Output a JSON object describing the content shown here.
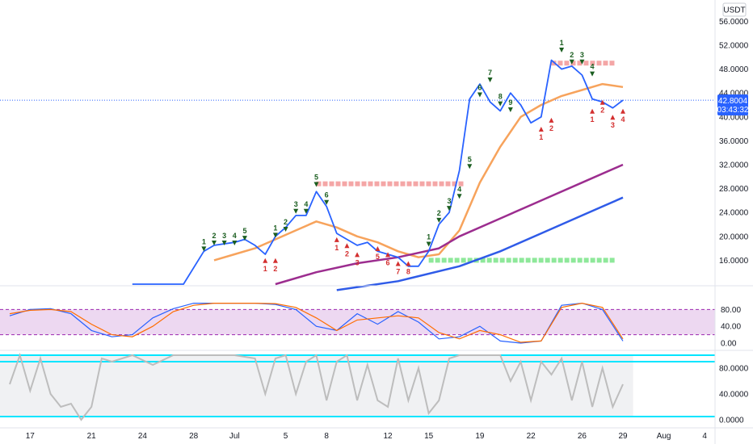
{
  "chart_data": {
    "type": "line",
    "currency_label": "USDT",
    "current_price": "42.8004",
    "countdown": "03:43:32",
    "x_tick_labels": [
      "17",
      "21",
      "24",
      "28",
      "Jul",
      "5",
      "8",
      "12",
      "15",
      "19",
      "22",
      "26",
      "29",
      "Aug",
      "4"
    ],
    "main_y_ticks": [
      "56.0000",
      "52.0000",
      "48.0000",
      "44.0000",
      "40.0000",
      "36.0000",
      "32.0000",
      "28.0000",
      "24.0000",
      "20.0000",
      "16.0000"
    ],
    "stoch_y_ticks": [
      "80.00",
      "40.00",
      "0.00"
    ],
    "rsi_y_ticks": [
      "80.0000",
      "40.0000",
      "0.0000"
    ],
    "price_series": {
      "name": "",
      "color": "#2962ff",
      "points": [
        [
          6,
          12
        ],
        [
          8.5,
          12
        ],
        [
          9.5,
          17.5
        ],
        [
          10,
          18.5
        ],
        [
          11,
          19
        ],
        [
          11.5,
          19.5
        ],
        [
          12,
          18.5
        ],
        [
          12.5,
          17
        ],
        [
          13,
          20
        ],
        [
          13.5,
          21.5
        ],
        [
          14,
          23.5
        ],
        [
          14.5,
          23.5
        ],
        [
          15,
          27.5
        ],
        [
          15.5,
          25
        ],
        [
          16,
          20.5
        ],
        [
          16.5,
          19.5
        ],
        [
          17,
          18.5
        ],
        [
          17.5,
          19
        ],
        [
          18,
          17.5
        ],
        [
          18.5,
          17
        ],
        [
          19,
          16.5
        ],
        [
          19.5,
          15
        ],
        [
          20,
          15
        ],
        [
          20.5,
          17.5
        ],
        [
          21,
          22
        ],
        [
          21.5,
          24
        ],
        [
          22,
          31
        ],
        [
          22.5,
          43
        ],
        [
          23,
          45.5
        ],
        [
          23.5,
          42.5
        ],
        [
          24,
          41
        ],
        [
          24.5,
          44
        ],
        [
          25,
          42
        ],
        [
          25.5,
          39
        ],
        [
          26,
          40
        ],
        [
          26.5,
          49.5
        ],
        [
          27,
          48
        ],
        [
          27.5,
          48.5
        ],
        [
          28,
          47
        ],
        [
          28.5,
          43
        ],
        [
          29,
          42.5
        ],
        [
          29.5,
          41.5
        ],
        [
          30,
          42.8
        ]
      ]
    },
    "ma_series": [
      {
        "name": "",
        "color": "#f7a35c",
        "points": [
          [
            10,
            16
          ],
          [
            11,
            17
          ],
          [
            12,
            18
          ],
          [
            13,
            19.5
          ],
          [
            14,
            21
          ],
          [
            15,
            22.5
          ],
          [
            16,
            21.5
          ],
          [
            17,
            20
          ],
          [
            18,
            19
          ],
          [
            19,
            17.5
          ],
          [
            20,
            16.5
          ],
          [
            21,
            17
          ],
          [
            22,
            21
          ],
          [
            22.5,
            25
          ],
          [
            23,
            29
          ],
          [
            24,
            35
          ],
          [
            25,
            40
          ],
          [
            26,
            42
          ],
          [
            27,
            43.5
          ],
          [
            28,
            44.5
          ],
          [
            29,
            45.5
          ],
          [
            30,
            45
          ]
        ]
      },
      {
        "name": "",
        "color": "#9c2d8f",
        "points": [
          [
            13,
            12
          ],
          [
            15,
            14
          ],
          [
            17,
            15.5
          ],
          [
            19,
            16.5
          ],
          [
            21,
            18
          ],
          [
            22,
            20
          ],
          [
            24,
            23
          ],
          [
            26,
            26
          ],
          [
            28,
            29
          ],
          [
            30,
            32
          ]
        ]
      },
      {
        "name": "",
        "color": "#2f5be8",
        "points": [
          [
            16,
            11
          ],
          [
            19,
            12.5
          ],
          [
            22,
            15
          ],
          [
            24,
            17.5
          ],
          [
            26,
            20.5
          ],
          [
            28,
            23.5
          ],
          [
            30,
            26.5
          ]
        ]
      }
    ],
    "resistance_levels": [
      {
        "from": 15,
        "to": 22,
        "y": 28.8,
        "color": "#f4a6a6"
      },
      {
        "from": 26.5,
        "to": 29.5,
        "y": 49,
        "color": "#f4a6a6"
      }
    ],
    "support_levels": [
      {
        "from": 20.5,
        "to": 29.5,
        "y": 16,
        "color": "#8ee89a"
      }
    ],
    "stoch": {
      "band": [
        20,
        80
      ],
      "k": [
        [
          0,
          65
        ],
        [
          1,
          80
        ],
        [
          2,
          82
        ],
        [
          3,
          70
        ],
        [
          4,
          30
        ],
        [
          5,
          15
        ],
        [
          6,
          20
        ],
        [
          7,
          60
        ],
        [
          8,
          82
        ],
        [
          9,
          95
        ],
        [
          10,
          95
        ],
        [
          11,
          95
        ],
        [
          12,
          95
        ],
        [
          13,
          92
        ],
        [
          14,
          80
        ],
        [
          15,
          40
        ],
        [
          16,
          30
        ],
        [
          17,
          70
        ],
        [
          18,
          45
        ],
        [
          19,
          75
        ],
        [
          20,
          50
        ],
        [
          21,
          10
        ],
        [
          22,
          15
        ],
        [
          23,
          40
        ],
        [
          24,
          5
        ],
        [
          25,
          0
        ],
        [
          26,
          5
        ],
        [
          27,
          90
        ],
        [
          28,
          95
        ],
        [
          29,
          80
        ],
        [
          30,
          5
        ]
      ],
      "d": [
        [
          0,
          70
        ],
        [
          1,
          78
        ],
        [
          2,
          80
        ],
        [
          3,
          75
        ],
        [
          4,
          45
        ],
        [
          5,
          20
        ],
        [
          6,
          15
        ],
        [
          7,
          40
        ],
        [
          8,
          75
        ],
        [
          9,
          90
        ],
        [
          10,
          95
        ],
        [
          11,
          95
        ],
        [
          12,
          95
        ],
        [
          13,
          94
        ],
        [
          14,
          85
        ],
        [
          15,
          60
        ],
        [
          16,
          30
        ],
        [
          17,
          55
        ],
        [
          18,
          60
        ],
        [
          19,
          65
        ],
        [
          20,
          60
        ],
        [
          21,
          25
        ],
        [
          22,
          10
        ],
        [
          23,
          30
        ],
        [
          24,
          20
        ],
        [
          25,
          2
        ],
        [
          26,
          5
        ],
        [
          27,
          85
        ],
        [
          28,
          95
        ],
        [
          29,
          85
        ],
        [
          30,
          10
        ]
      ]
    },
    "rsi": {
      "lines": [
        5,
        90,
        100
      ],
      "values": [
        [
          0,
          55
        ],
        [
          0.5,
          100
        ],
        [
          1,
          45
        ],
        [
          1.5,
          95
        ],
        [
          2,
          40
        ],
        [
          2.5,
          20
        ],
        [
          3,
          25
        ],
        [
          3.5,
          0
        ],
        [
          4,
          20
        ],
        [
          4.5,
          95
        ],
        [
          5,
          90
        ],
        [
          5.5,
          95
        ],
        [
          6,
          100
        ],
        [
          7,
          85
        ],
        [
          8,
          100
        ],
        [
          9,
          100
        ],
        [
          10,
          100
        ],
        [
          11,
          100
        ],
        [
          12,
          95
        ],
        [
          12.5,
          40
        ],
        [
          13,
          95
        ],
        [
          13.5,
          100
        ],
        [
          14,
          40
        ],
        [
          14.5,
          90
        ],
        [
          15,
          100
        ],
        [
          15.5,
          30
        ],
        [
          16,
          90
        ],
        [
          16.5,
          100
        ],
        [
          17,
          30
        ],
        [
          17.5,
          85
        ],
        [
          18,
          30
        ],
        [
          18.5,
          20
        ],
        [
          19,
          95
        ],
        [
          19.5,
          30
        ],
        [
          20,
          80
        ],
        [
          20.5,
          10
        ],
        [
          21,
          30
        ],
        [
          21.5,
          95
        ],
        [
          22,
          100
        ],
        [
          22.5,
          100
        ],
        [
          23,
          100
        ],
        [
          23.5,
          100
        ],
        [
          24,
          100
        ],
        [
          24.5,
          60
        ],
        [
          25,
          90
        ],
        [
          25.5,
          30
        ],
        [
          26,
          90
        ],
        [
          26.5,
          70
        ],
        [
          27,
          95
        ],
        [
          27.5,
          30
        ],
        [
          28,
          90
        ],
        [
          28.5,
          20
        ],
        [
          29,
          80
        ],
        [
          29.5,
          20
        ],
        [
          30,
          55
        ]
      ]
    },
    "markers": [
      {
        "text": "1",
        "x": 9.5,
        "y": 18.7,
        "color": "#1b5e20"
      },
      {
        "text": "2",
        "x": 10,
        "y": 19.7,
        "color": "#1b5e20"
      },
      {
        "text": "3",
        "x": 10.5,
        "y": 19.7,
        "color": "#1b5e20"
      },
      {
        "text": "4",
        "x": 11,
        "y": 19.7,
        "color": "#1b5e20"
      },
      {
        "text": "5",
        "x": 11.5,
        "y": 20.5,
        "color": "#1b5e20"
      },
      {
        "text": "1",
        "x": 13,
        "y": 21,
        "color": "#1b5e20"
      },
      {
        "text": "2",
        "x": 13.5,
        "y": 22,
        "color": "#1b5e20"
      },
      {
        "text": "3",
        "x": 14,
        "y": 25,
        "color": "#1b5e20"
      },
      {
        "text": "4",
        "x": 14.5,
        "y": 25,
        "color": "#1b5e20"
      },
      {
        "text": "5",
        "x": 15,
        "y": 29.5,
        "color": "#1b5e20"
      },
      {
        "text": "6",
        "x": 15.5,
        "y": 26.5,
        "color": "#1b5e20"
      },
      {
        "text": "1",
        "x": 12.5,
        "y": 15,
        "color": "#d32f2f"
      },
      {
        "text": "2",
        "x": 13,
        "y": 15,
        "color": "#d32f2f"
      },
      {
        "text": "1",
        "x": 16,
        "y": 18.5,
        "color": "#d32f2f"
      },
      {
        "text": "2",
        "x": 16.5,
        "y": 17.5,
        "color": "#d32f2f"
      },
      {
        "text": "3",
        "x": 17,
        "y": 16,
        "color": "#d32f2f"
      },
      {
        "text": "5",
        "x": 18,
        "y": 17,
        "color": "#d32f2f"
      },
      {
        "text": "6",
        "x": 18.5,
        "y": 16,
        "color": "#d32f2f"
      },
      {
        "text": "7",
        "x": 19,
        "y": 14.5,
        "color": "#d32f2f"
      },
      {
        "text": "8",
        "x": 19.5,
        "y": 14.5,
        "color": "#d32f2f"
      },
      {
        "text": "1",
        "x": 20.5,
        "y": 19.5,
        "color": "#1b5e20"
      },
      {
        "text": "2",
        "x": 21,
        "y": 23.5,
        "color": "#1b5e20"
      },
      {
        "text": "3",
        "x": 21.5,
        "y": 25.5,
        "color": "#1b5e20"
      },
      {
        "text": "4",
        "x": 22,
        "y": 27.5,
        "color": "#1b5e20"
      },
      {
        "text": "5",
        "x": 22.5,
        "y": 32.5,
        "color": "#1b5e20"
      },
      {
        "text": "6",
        "x": 23,
        "y": 44.5,
        "color": "#1b5e20"
      },
      {
        "text": "7",
        "x": 23.5,
        "y": 47,
        "color": "#1b5e20"
      },
      {
        "text": "8",
        "x": 24,
        "y": 43,
        "color": "#1b5e20"
      },
      {
        "text": "9",
        "x": 24.5,
        "y": 42,
        "color": "#1b5e20"
      },
      {
        "text": "1",
        "x": 26,
        "y": 37,
        "color": "#d32f2f"
      },
      {
        "text": "2",
        "x": 26.5,
        "y": 38.5,
        "color": "#d32f2f"
      },
      {
        "text": "1",
        "x": 27,
        "y": 52,
        "color": "#1b5e20"
      },
      {
        "text": "2",
        "x": 27.5,
        "y": 50,
        "color": "#1b5e20"
      },
      {
        "text": "3",
        "x": 28,
        "y": 50,
        "color": "#1b5e20"
      },
      {
        "text": "4",
        "x": 28.5,
        "y": 48,
        "color": "#1b5e20"
      },
      {
        "text": "1",
        "x": 28.5,
        "y": 40,
        "color": "#d32f2f"
      },
      {
        "text": "2",
        "x": 29,
        "y": 41.5,
        "color": "#d32f2f"
      },
      {
        "text": "3",
        "x": 29.5,
        "y": 39,
        "color": "#d32f2f"
      },
      {
        "text": "4",
        "x": 30,
        "y": 40,
        "color": "#d32f2f"
      }
    ]
  }
}
